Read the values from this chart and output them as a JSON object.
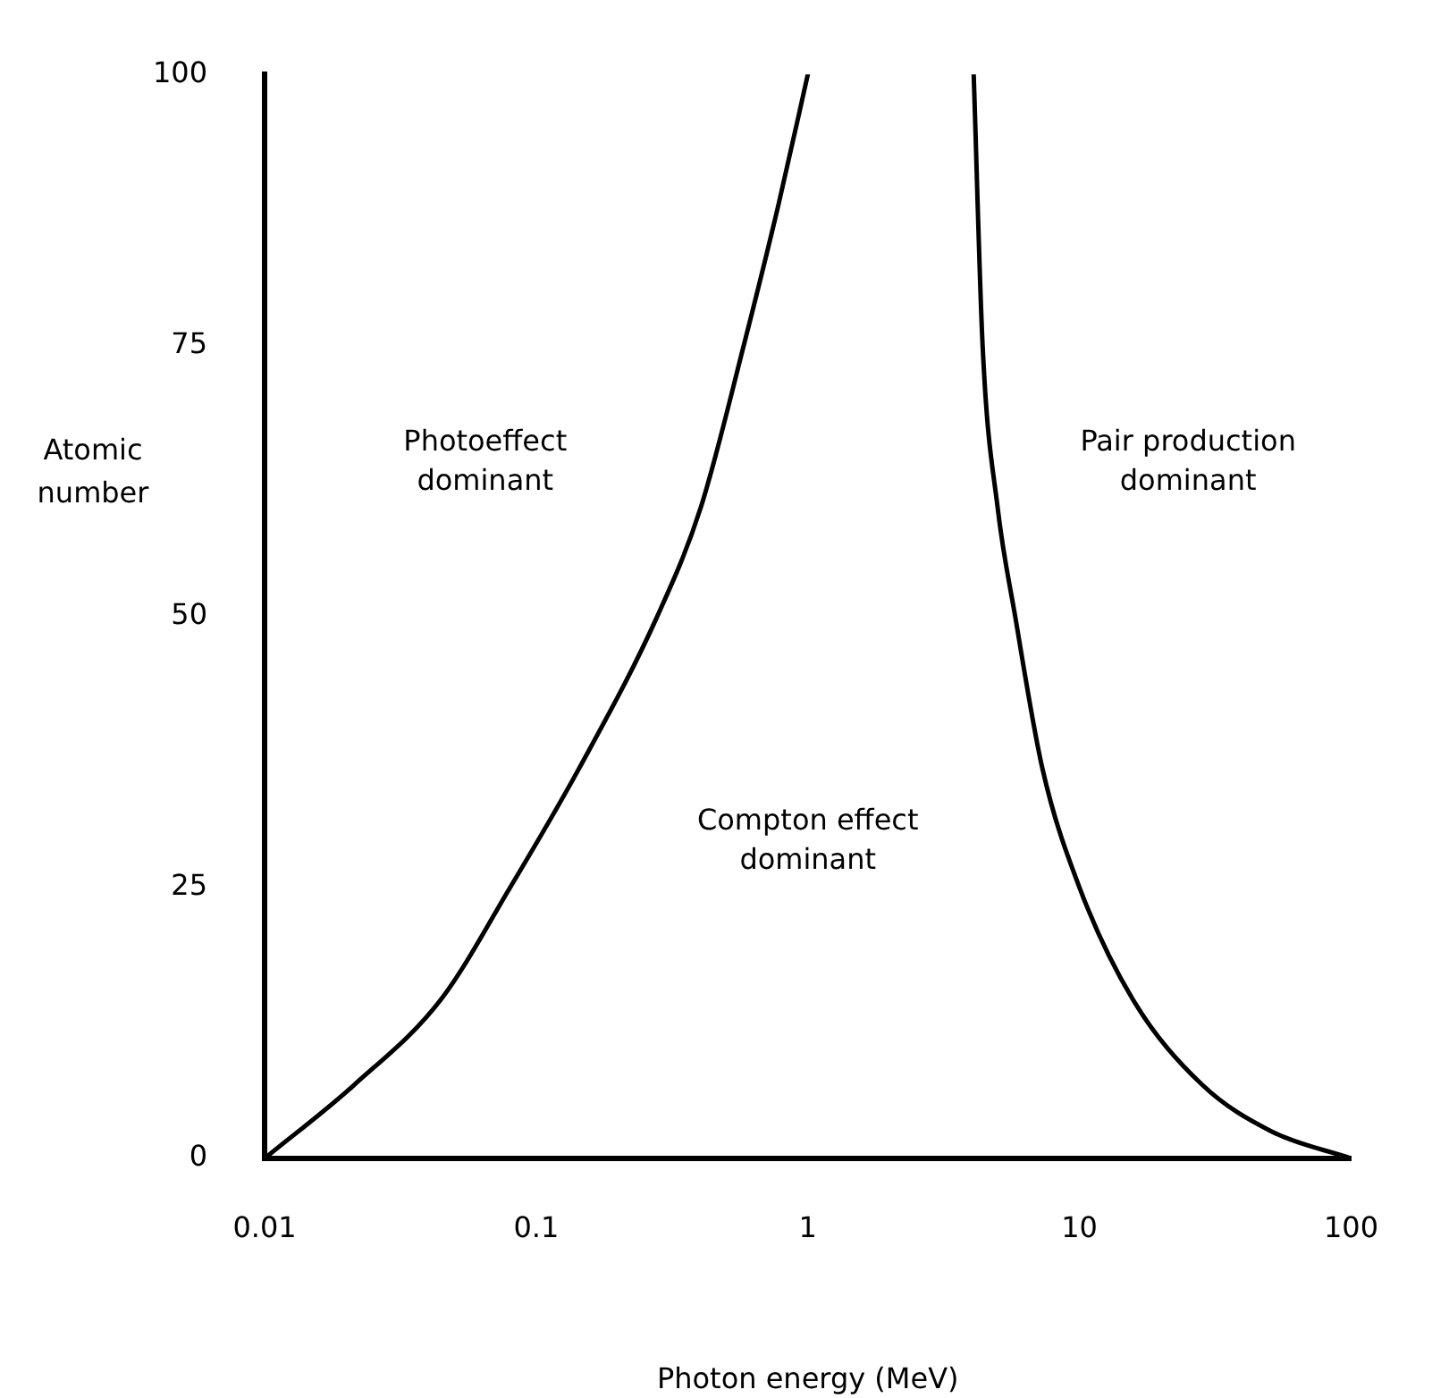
{
  "chart_data": {
    "type": "line",
    "xlabel": "Photon energy (MeV)",
    "ylabel": "Atomic\nnumber",
    "log": "x",
    "xlim": [
      0.01,
      100
    ],
    "xticks": [
      0.01,
      0.1,
      1,
      10,
      100
    ],
    "ylim": [
      0,
      100
    ],
    "yticks": [
      0,
      25,
      50,
      75,
      100
    ],
    "grid": false,
    "legend": false,
    "marker": "none",
    "line_style": "solid",
    "series": [
      {
        "color": "#000000",
        "x": [
          0.01,
          0.0214,
          0.0447,
          0.0802,
          0.144,
          0.279,
          0.403,
          0.581,
          0.78,
          1.0
        ],
        "values": [
          0,
          6.8,
          14.7,
          25,
          36,
          50,
          60,
          75,
          88,
          100
        ]
      },
      {
        "color": "#000000",
        "x": [
          4.08,
          4.4,
          5.0,
          5.8,
          7.3,
          10,
          15.7,
          28.3,
          50.9,
          100
        ],
        "values": [
          100,
          75,
          60,
          50,
          36,
          25,
          14.7,
          6.8,
          2.5,
          0
        ]
      }
    ],
    "annotations": [
      "Photoeffect\ndominant",
      "Pair production\ndominant",
      "Compton effect\ndominant"
    ]
  }
}
